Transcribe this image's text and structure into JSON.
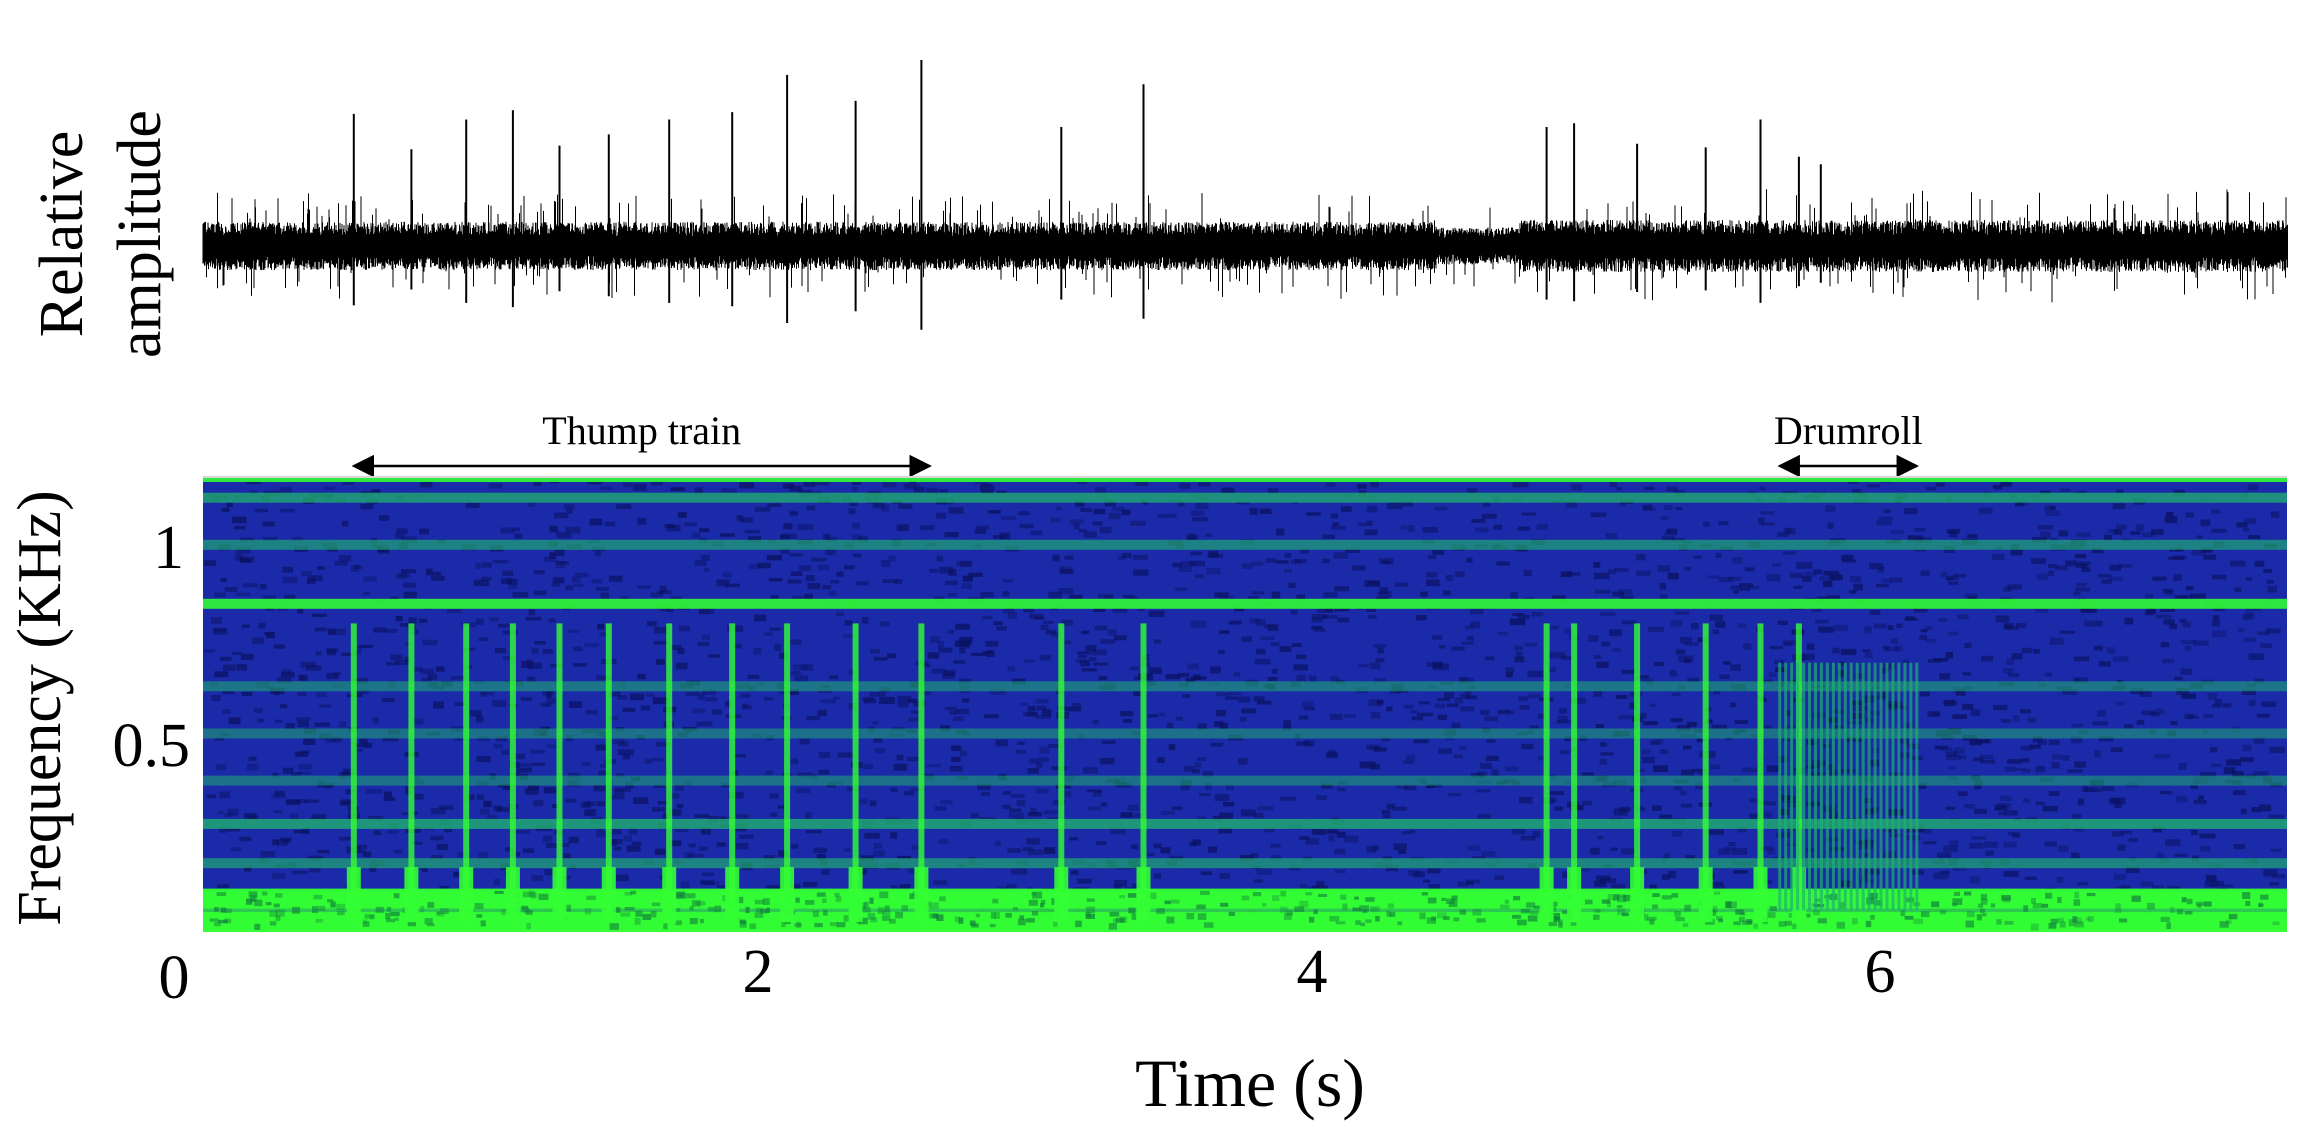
{
  "chart_data": [
    {
      "type": "line",
      "panel": "waveform",
      "ylabel_lines": [
        "Relative",
        "amplitude"
      ],
      "x_range_s": [
        0,
        7.6
      ],
      "baseline_amplitude": 0.15,
      "noise_amplitude": 0.12,
      "noise_amplitude_segments": [
        {
          "t_start": 0.0,
          "t_end": 4.5,
          "level": 0.13
        },
        {
          "t_start": 4.5,
          "t_end": 4.8,
          "level": 0.1
        },
        {
          "t_start": 4.8,
          "t_end": 7.6,
          "level": 0.14
        }
      ],
      "spike_peaks": [
        {
          "t": 0.55,
          "amp": 0.71
        },
        {
          "t": 0.76,
          "amp": 0.52
        },
        {
          "t": 0.96,
          "amp": 0.68
        },
        {
          "t": 1.13,
          "amp": 0.73
        },
        {
          "t": 1.3,
          "amp": 0.54
        },
        {
          "t": 1.48,
          "amp": 0.6
        },
        {
          "t": 1.7,
          "amp": 0.68
        },
        {
          "t": 1.93,
          "amp": 0.72
        },
        {
          "t": 2.13,
          "amp": 0.92
        },
        {
          "t": 2.38,
          "amp": 0.78
        },
        {
          "t": 2.62,
          "amp": 1.0
        },
        {
          "t": 3.13,
          "amp": 0.64
        },
        {
          "t": 3.43,
          "amp": 0.87
        },
        {
          "t": 4.9,
          "amp": 0.64
        },
        {
          "t": 5.0,
          "amp": 0.66
        },
        {
          "t": 5.23,
          "amp": 0.55
        },
        {
          "t": 5.48,
          "amp": 0.53
        },
        {
          "t": 5.68,
          "amp": 0.68
        },
        {
          "t": 5.82,
          "amp": 0.48
        },
        {
          "t": 5.9,
          "amp": 0.44
        }
      ]
    },
    {
      "type": "heatmap",
      "panel": "spectrogram",
      "xlabel": "Time (s)",
      "ylabel": "Frequency (KHz)",
      "x_range_s": [
        0,
        7.6
      ],
      "y_range_khz": [
        0,
        1.15
      ],
      "x_ticks": [
        {
          "value": 0,
          "label": "0"
        },
        {
          "value": 2,
          "label": "2"
        },
        {
          "value": 4,
          "label": "4"
        },
        {
          "value": 6,
          "label": "6"
        }
      ],
      "y_ticks": [
        {
          "value": 0.5,
          "label": "0.5"
        },
        {
          "value": 1,
          "label": "1"
        }
      ],
      "colors": {
        "background": "#1a2aa8",
        "dark": "#0a1160",
        "band": "#20b070",
        "bright": "#33ff33"
      },
      "horizontal_bands_khz": [
        {
          "freq": 1.1,
          "strength": 0.7
        },
        {
          "freq": 0.98,
          "strength": 0.5
        },
        {
          "freq": 0.83,
          "strength": 0.9
        },
        {
          "freq": 0.62,
          "strength": 0.35
        },
        {
          "freq": 0.5,
          "strength": 0.3
        },
        {
          "freq": 0.38,
          "strength": 0.3
        },
        {
          "freq": 0.27,
          "strength": 0.75
        },
        {
          "freq": 0.17,
          "strength": 0.55
        },
        {
          "freq": 0.08,
          "strength": 1.0
        },
        {
          "freq": 0.02,
          "strength": 1.0
        }
      ],
      "vertical_pulses_s": [
        0.55,
        0.76,
        0.96,
        1.13,
        1.3,
        1.48,
        1.7,
        1.93,
        2.13,
        2.38,
        2.62,
        3.13,
        3.43,
        4.9,
        5.0,
        5.23,
        5.48,
        5.68,
        5.82
      ],
      "drumroll_pulses": {
        "t_start": 5.75,
        "t_end": 6.25,
        "count": 24
      },
      "annotations": [
        {
          "label": "Thump train",
          "t_start": 0.55,
          "t_end": 2.65
        },
        {
          "label": "Drumroll",
          "t_start": 5.75,
          "t_end": 6.25
        }
      ]
    }
  ]
}
